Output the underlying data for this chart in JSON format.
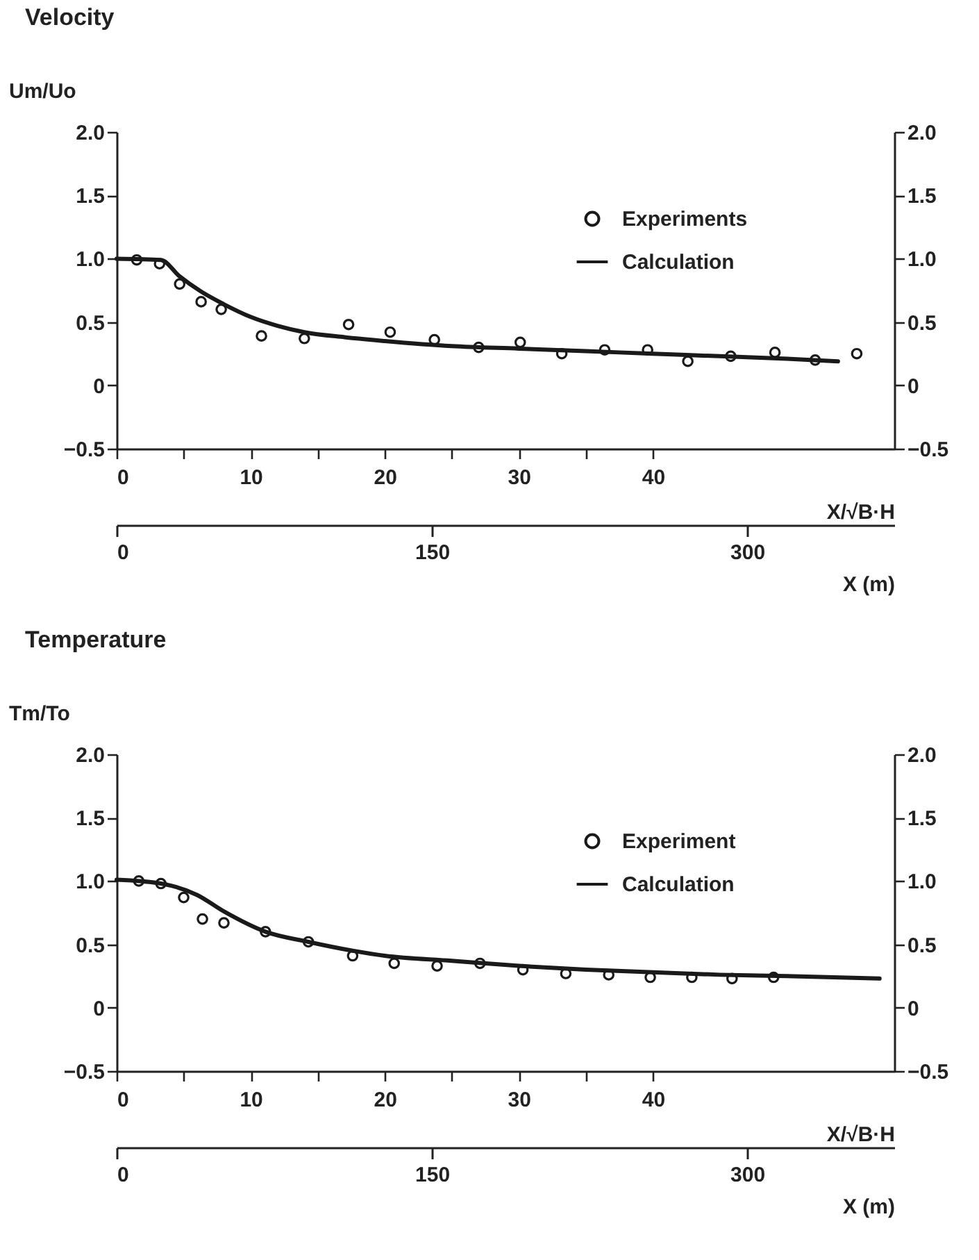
{
  "chart_data": [
    {
      "type": "scatter",
      "title": "Velocity",
      "xlabel": "X/√B·H",
      "ylabel": "Um/Uo",
      "x2label": "X (m)",
      "legend": "right",
      "grid": false,
      "xlim": [
        0,
        58
      ],
      "xticks": [
        0,
        {
          "value": 5,
          "label": null
        },
        10,
        {
          "value": 15,
          "label": null
        },
        20,
        {
          "value": 25,
          "label": null
        },
        30,
        {
          "value": 35,
          "label": null
        },
        40
      ],
      "x2lim": [
        0,
        370
      ],
      "x2ticks": [
        0,
        150,
        300
      ],
      "ylim": [
        -0.5,
        2.0
      ],
      "yticks": [
        {
          "value": -0.5,
          "label": "−0.5"
        },
        0,
        0.5,
        {
          "value": 1,
          "label": "1.0"
        },
        1.5,
        {
          "value": 2,
          "label": "2.0"
        }
      ],
      "y2lim": [
        -0.5,
        2.0
      ],
      "y2ticks": [
        {
          "value": -0.5,
          "label": "−0.5"
        },
        0,
        0.5,
        {
          "value": 1,
          "label": "1.0"
        },
        1.5,
        {
          "value": 2,
          "label": "2.0"
        }
      ],
      "series": [
        {
          "name": "Experiments",
          "marker": "circle",
          "color": "#1a1a1a",
          "x": [
            1.5,
            3.2,
            4.7,
            6.3,
            7.8,
            10.8,
            14.0,
            17.3,
            20.4,
            23.7,
            27.0,
            30.1,
            33.2,
            36.4,
            39.6,
            42.6,
            45.8,
            49.1,
            52.1,
            55.2
          ],
          "values": [
            0.99,
            0.96,
            0.8,
            0.66,
            0.6,
            0.39,
            0.37,
            0.48,
            0.42,
            0.36,
            0.3,
            0.34,
            0.25,
            0.28,
            0.28,
            0.19,
            0.23,
            0.26,
            0.2,
            0.25
          ]
        },
        {
          "name": "Calculation",
          "type": "line",
          "marker": "none",
          "color": "#1a1a1a",
          "x": [
            0,
            3.3,
            4.7,
            6.3,
            8,
            10,
            12,
            14,
            17,
            20,
            25,
            30,
            35,
            40,
            45,
            50,
            53.8
          ],
          "values": [
            1.0,
            0.99,
            0.86,
            0.74,
            0.64,
            0.54,
            0.47,
            0.42,
            0.38,
            0.35,
            0.31,
            0.29,
            0.27,
            0.25,
            0.23,
            0.21,
            0.19
          ]
        }
      ]
    },
    {
      "type": "scatter",
      "title": "Temperature",
      "xlabel": "X/√B·H",
      "ylabel": "Tm/To",
      "x2label": "X (m)",
      "legend": "right",
      "grid": false,
      "xlim": [
        0,
        58
      ],
      "xticks": [
        0,
        {
          "value": 5,
          "label": null
        },
        10,
        {
          "value": 15,
          "label": null
        },
        20,
        {
          "value": 25,
          "label": null
        },
        30,
        {
          "value": 35,
          "label": null
        },
        40
      ],
      "x2lim": [
        0,
        370
      ],
      "x2ticks": [
        0,
        150,
        300
      ],
      "ylim": [
        -0.5,
        2.0
      ],
      "yticks": [
        {
          "value": -0.5,
          "label": "−0.5"
        },
        0,
        0.5,
        {
          "value": 1,
          "label": "1.0"
        },
        1.5,
        {
          "value": 2,
          "label": "2.0"
        }
      ],
      "y2lim": [
        -0.5,
        2.0
      ],
      "y2ticks": [
        {
          "value": -0.5,
          "label": "−0.5"
        },
        0,
        0.5,
        {
          "value": 1,
          "label": "1.0"
        },
        1.5,
        {
          "value": 2,
          "label": "2.0"
        }
      ],
      "series": [
        {
          "name": "Experiment",
          "marker": "circle",
          "color": "#1a1a1a",
          "x": [
            1.65,
            3.3,
            5.0,
            6.4,
            8.0,
            11.1,
            14.3,
            17.6,
            20.7,
            23.9,
            27.1,
            30.3,
            33.5,
            36.7,
            39.8,
            42.9,
            45.9,
            49.0
          ],
          "values": [
            1.0,
            0.98,
            0.87,
            0.7,
            0.67,
            0.6,
            0.52,
            0.41,
            0.35,
            0.33,
            0.35,
            0.3,
            0.27,
            0.26,
            0.24,
            0.24,
            0.23,
            0.24
          ]
        },
        {
          "name": "Calculation",
          "type": "line",
          "marker": "none",
          "color": "#1a1a1a",
          "x": [
            0,
            3.3,
            6,
            8,
            11.1,
            14.3,
            17.6,
            20,
            25,
            30,
            35,
            40,
            45,
            50,
            56.9
          ],
          "values": [
            1.01,
            0.98,
            0.89,
            0.76,
            0.6,
            0.52,
            0.45,
            0.41,
            0.37,
            0.33,
            0.3,
            0.28,
            0.26,
            0.25,
            0.23
          ]
        }
      ]
    }
  ]
}
